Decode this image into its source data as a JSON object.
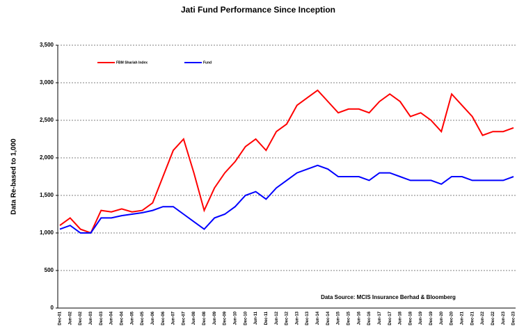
{
  "chart_data": {
    "type": "line",
    "title": "Jati Fund Performance Since Inception",
    "y_label": "Data Re-based to 1,000",
    "annotation": "Data Source: MCIS Insurance Berhad & Bloomberg",
    "categories": [
      "Dec-01",
      "Jun-02",
      "Dec-02",
      "Jun-03",
      "Dec-03",
      "Jun-04",
      "Dec-04",
      "Jun-05",
      "Dec-05",
      "Jun-06",
      "Dec-06",
      "Jun-07",
      "Dec-07",
      "Jun-08",
      "Dec-08",
      "Jun-09",
      "Dec-09",
      "Jun-10",
      "Dec-10",
      "Jun-11",
      "Dec-11",
      "Jun-12",
      "Dec-12",
      "Jun-13",
      "Dec-13",
      "Jun-14",
      "Dec-14",
      "Jun-15",
      "Dec-15",
      "Jun-16",
      "Dec-16",
      "Jun-17",
      "Dec-17",
      "Jun-18",
      "Dec-18",
      "Jun-19",
      "Dec-19",
      "Jun-20",
      "Dec-20",
      "Jun-21",
      "Dec-21",
      "Jun-22",
      "Dec-22",
      "Jun-23",
      "Dec-23"
    ],
    "series": [
      {
        "name": "FBM Shariah Index",
        "color": "#ff0000",
        "values": [
          1100,
          1200,
          1050,
          1000,
          1300,
          1280,
          1320,
          1280,
          1300,
          1400,
          1750,
          2100,
          2250,
          1800,
          1300,
          1600,
          1800,
          1950,
          2150,
          2250,
          2100,
          2350,
          2450,
          2700,
          2800,
          2900,
          2750,
          2600,
          2650,
          2650,
          2600,
          2750,
          2850,
          2750,
          2550,
          2600,
          2500,
          2350,
          2850,
          2700,
          2550,
          2300,
          2350,
          2350,
          2400
        ]
      },
      {
        "name": "Fund",
        "color": "#0000ff",
        "values": [
          1050,
          1100,
          1000,
          1000,
          1200,
          1200,
          1230,
          1250,
          1270,
          1300,
          1350,
          1350,
          1250,
          1150,
          1050,
          1200,
          1250,
          1350,
          1500,
          1550,
          1450,
          1600,
          1700,
          1800,
          1850,
          1900,
          1850,
          1750,
          1750,
          1750,
          1700,
          1800,
          1800,
          1750,
          1700,
          1700,
          1700,
          1650,
          1750,
          1750,
          1700,
          1700,
          1700,
          1700,
          1750
        ]
      }
    ],
    "ylim": [
      0,
      3500
    ],
    "yticks": [
      0,
      500,
      {
        "value": 1000,
        "label": "1,000"
      },
      {
        "value": 1500,
        "label": "1,500"
      },
      {
        "value": 2000,
        "label": "2,000"
      },
      {
        "value": 2500,
        "label": "2,500"
      },
      {
        "value": 3000,
        "label": "3,000"
      },
      {
        "value": 3500,
        "label": "3,500"
      }
    ],
    "grid": true
  }
}
